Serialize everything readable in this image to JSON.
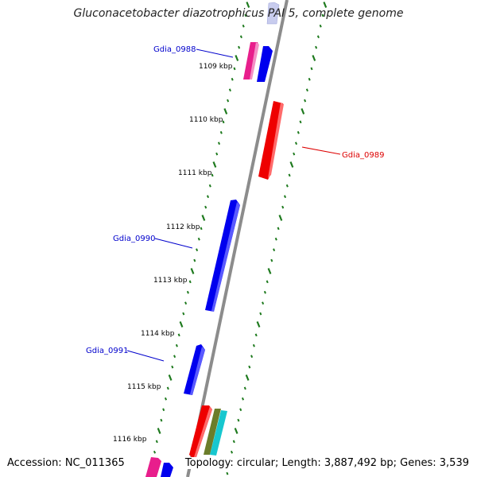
{
  "title": "Gluconacetobacter diazotrophicus PAI 5, complete genome",
  "footer": {
    "accession": "Accession: NC_011365",
    "summary": "Topology: circular; Length: 3,887,492 bp; Genes: 3,539"
  },
  "colors": {
    "backbone": "#8c8c8c",
    "tick": "#1e7a1e",
    "forward_gene": "#0000ee",
    "reverse_gene": "#ee0000",
    "pink_gene": "#e81e8c",
    "olive_gene": "#6b7d2a",
    "cyan_gene": "#17c7cf",
    "faded_gene": "#c8ccee"
  },
  "position_labels": [
    "1109 kbp",
    "1110 kbp",
    "1111 kbp",
    "1112 kbp",
    "1113 kbp",
    "1114 kbp",
    "1115 kbp",
    "1116 kbp"
  ],
  "gene_labels": [
    {
      "name": "Gdia_0988",
      "color": "#0000cc"
    },
    {
      "name": "Gdia_0989",
      "color": "#dd0000"
    },
    {
      "name": "Gdia_0990",
      "color": "#0000cc"
    },
    {
      "name": "Gdia_0991",
      "color": "#0000cc"
    }
  ]
}
